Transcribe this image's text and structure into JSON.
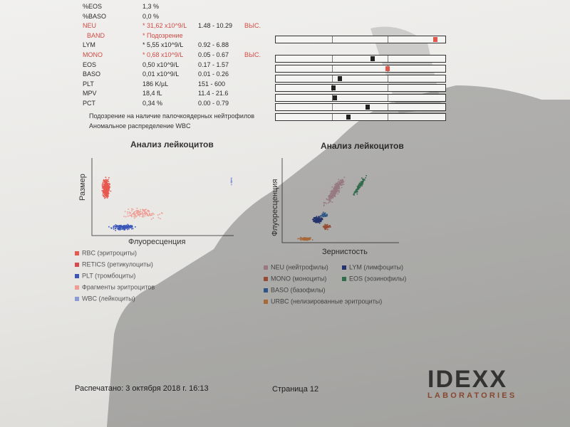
{
  "rows": [
    {
      "name": "%EOS",
      "value": "1,3 %",
      "ref": "",
      "flag": "",
      "red": false,
      "bar": null
    },
    {
      "name": "%BASO",
      "value": "0,0 %",
      "ref": "",
      "flag": "",
      "red": false,
      "bar": null
    },
    {
      "name": "NEU",
      "value": "* 31,62 x10^9/L",
      "ref": "1.48 - 10.29",
      "flag": "ВЫС.",
      "red": true,
      "bar": {
        "mark": 0.94,
        "high": true
      }
    },
    {
      "name": "BAND",
      "value": "* Подозрение",
      "ref": "",
      "flag": "",
      "red": true,
      "bar": null
    },
    {
      "name": "LYM",
      "value": "* 5,55 x10^9/L",
      "ref": "0.92 - 6.88",
      "flag": "",
      "red": false,
      "bar": {
        "mark": 0.57,
        "high": false
      }
    },
    {
      "name": "MONO",
      "value": "* 0,68 x10^9/L",
      "ref": "0.05 - 0.67",
      "flag": "ВЫС.",
      "red": true,
      "bar": {
        "mark": 0.66,
        "high": true
      }
    },
    {
      "name": "EOS",
      "value": "0,50 x10^9/L",
      "ref": "0.17 - 1.57",
      "flag": "",
      "red": false,
      "bar": {
        "mark": 0.38,
        "high": false
      }
    },
    {
      "name": "BASO",
      "value": "0,01 x10^9/L",
      "ref": "0.01 - 0.26",
      "flag": "",
      "red": false,
      "bar": {
        "mark": 0.34,
        "high": false
      }
    },
    {
      "name": "PLT",
      "value": "186 K/µL",
      "ref": "151 - 600",
      "flag": "",
      "red": false,
      "bar": {
        "mark": 0.35,
        "high": false
      }
    },
    {
      "name": "MPV",
      "value": "18,4 fL",
      "ref": "11.4 - 21.6",
      "flag": "",
      "red": false,
      "bar": {
        "mark": 0.54,
        "high": false
      }
    },
    {
      "name": "PCT",
      "value": "0,34 %",
      "ref": "0.00 - 0.79",
      "flag": "",
      "red": false,
      "bar": {
        "mark": 0.43,
        "high": false
      }
    }
  ],
  "notes": [
    "Подозрение на наличие палочкоядерных нейтрофилов",
    "Аномальное распределение WBC"
  ],
  "chart_data": [
    {
      "type": "scatter",
      "title": "Анализ лейкоцитов",
      "xlabel": "Флуоресценция",
      "ylabel": "Размер",
      "legend": [
        {
          "label": "RBC (эритроциты)",
          "color": "#e8584e"
        },
        {
          "label": "RETICS (ретикулоциты)",
          "color": "#d9484a"
        },
        {
          "label": "PLT (тромбоциты)",
          "color": "#3a56b8"
        },
        {
          "label": "Фрагменты эритроцитов",
          "color": "#ef9c92"
        },
        {
          "label": "WBC (лейкоциты)",
          "color": "#8a9ad2"
        }
      ],
      "clusters": [
        {
          "series": "RBC (эритроциты)",
          "cx": 0.1,
          "cy": 0.62,
          "sx": 0.04,
          "sy": 0.18,
          "n": 320
        },
        {
          "series": "PLT (тромбоциты)",
          "cx": 0.22,
          "cy": 0.12,
          "sx": 0.12,
          "sy": 0.05,
          "n": 160
        },
        {
          "series": "Фрагменты эритроцитов",
          "cx": 0.35,
          "cy": 0.3,
          "sx": 0.2,
          "sy": 0.1,
          "n": 120
        },
        {
          "series": "WBC (лейкоциты)",
          "cx": 0.98,
          "cy": 0.7,
          "sx": 0.003,
          "sy": 0.08,
          "n": 14
        }
      ]
    },
    {
      "type": "scatter",
      "title": "Анализ лейкоцитов",
      "xlabel": "Зернистость",
      "ylabel": "Флуоресценция",
      "legend": [
        {
          "label": "NEU (нейтрофилы)",
          "color": "#c9a1a8"
        },
        {
          "label": "LYM (лимфоциты)",
          "color": "#2b3f8f"
        },
        {
          "label": "MONO (моноциты)",
          "color": "#c5613f"
        },
        {
          "label": "EOS (эозинофилы)",
          "color": "#3e8b62"
        },
        {
          "label": "BASO (базофилы)",
          "color": "#3b6fb2"
        },
        {
          "label": "URBC (нелизированные эритроциты)",
          "color": "#e08a4a"
        }
      ],
      "clusters": [
        {
          "series": "NEU (нейтрофилы)",
          "cx": 0.45,
          "cy": 0.62,
          "sx": 0.05,
          "sy": 0.22,
          "n": 260,
          "slope": 1
        },
        {
          "series": "LYM (лимфоциты)",
          "cx": 0.3,
          "cy": 0.28,
          "sx": 0.06,
          "sy": 0.06,
          "n": 160
        },
        {
          "series": "MONO (моноциты)",
          "cx": 0.38,
          "cy": 0.2,
          "sx": 0.05,
          "sy": 0.04,
          "n": 60
        },
        {
          "series": "EOS (эозинофилы)",
          "cx": 0.66,
          "cy": 0.68,
          "sx": 0.03,
          "sy": 0.15,
          "n": 110,
          "slope": 1
        },
        {
          "series": "BASO (базофилы)",
          "cx": 0.36,
          "cy": 0.34,
          "sx": 0.05,
          "sy": 0.04,
          "n": 50
        },
        {
          "series": "URBC (нелизированные эритроциты)",
          "cx": 0.2,
          "cy": 0.06,
          "sx": 0.08,
          "sy": 0.03,
          "n": 120
        }
      ]
    }
  ],
  "footer": {
    "printed": "Распечатано: 3 октября 2018 г. 16:13",
    "page": "Страница 12"
  },
  "logo": {
    "main": "IDEXX",
    "sub": "LABORATORIES"
  }
}
